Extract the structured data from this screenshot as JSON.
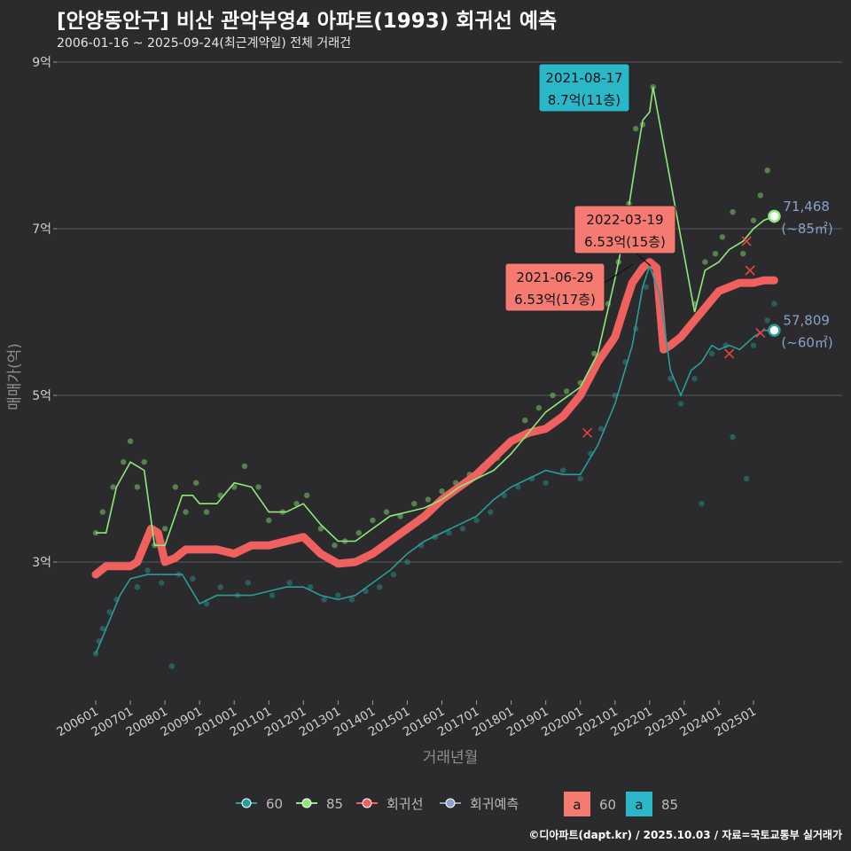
{
  "header": {
    "title": "[안양동안구] 비산 관악부영4 아파트(1993) 회귀선 예측",
    "subtitle": "2006-01-16 ~ 2025-09-24(최근계약일) 전체 거래건"
  },
  "footer": {
    "credit": "©디아파트(dapt.kr) / 2025.10.03 / 자료=국토교통부 실거래가"
  },
  "colors": {
    "background": "#2b2b2d",
    "grid": "#5a5a5c",
    "s60": "#2a9d9a",
    "s85": "#8ee87a",
    "regression": "#f0605e",
    "forecast": "#8fa0c8",
    "label60": "#2ab8c8",
    "label85": "#f47a72",
    "endLabel": "#8aa0c8"
  },
  "chart_data": {
    "type": "line",
    "title": "[안양동안구] 비산 관악부영4 아파트(1993) 회귀선 예측",
    "xlabel": "거래년월",
    "ylabel": "매매가(억)",
    "xlim": [
      2006.0,
      2025.85
    ],
    "ylim": [
      1.4,
      9.0
    ],
    "y_ticks": [
      3,
      5,
      7,
      9
    ],
    "y_tick_labels": [
      "3억",
      "5억",
      "7억",
      "9억"
    ],
    "x_ticks": [
      2006,
      2007,
      2008,
      2009,
      2010,
      2011,
      2012,
      2013,
      2014,
      2015,
      2016,
      2017,
      2018,
      2019,
      2020,
      2021,
      2022,
      2023,
      2024,
      2025
    ],
    "x_tick_labels": [
      "200601",
      "200701",
      "200801",
      "200901",
      "201001",
      "201101",
      "201201",
      "201301",
      "201401",
      "201501",
      "201601",
      "201701",
      "201801",
      "201901",
      "202001",
      "202101",
      "202201",
      "202301",
      "202401",
      "202501"
    ],
    "series": [
      {
        "name": "60",
        "x": [
          2006.0,
          2006.3,
          2006.7,
          2007.0,
          2007.5,
          2008.0,
          2008.5,
          2009.0,
          2009.5,
          2010.0,
          2010.5,
          2011.0,
          2011.5,
          2012.0,
          2012.5,
          2013.0,
          2013.5,
          2014.0,
          2014.5,
          2015.0,
          2015.5,
          2016.0,
          2016.5,
          2017.0,
          2017.5,
          2018.0,
          2018.5,
          2019.0,
          2019.5,
          2020.0,
          2020.5,
          2021.0,
          2021.5,
          2021.8,
          2022.0,
          2022.3,
          2022.6,
          2022.9,
          2023.2,
          2023.5,
          2023.8,
          2024.0,
          2024.3,
          2024.6,
          2025.0,
          2025.3,
          2025.6
        ],
        "y": [
          1.9,
          2.2,
          2.6,
          2.8,
          2.85,
          2.85,
          2.85,
          2.5,
          2.6,
          2.6,
          2.6,
          2.65,
          2.7,
          2.7,
          2.6,
          2.55,
          2.6,
          2.75,
          2.9,
          3.1,
          3.25,
          3.35,
          3.45,
          3.55,
          3.75,
          3.9,
          4.0,
          4.1,
          4.05,
          4.05,
          4.4,
          4.9,
          5.6,
          6.3,
          6.55,
          6.2,
          5.3,
          5.0,
          5.3,
          5.4,
          5.6,
          5.55,
          5.6,
          5.55,
          5.7,
          5.78,
          5.78
        ]
      },
      {
        "name": "85",
        "x": [
          2006.0,
          2006.3,
          2006.6,
          2007.0,
          2007.4,
          2007.7,
          2008.0,
          2008.5,
          2008.8,
          2009.0,
          2009.5,
          2010.0,
          2010.5,
          2011.0,
          2011.5,
          2012.0,
          2012.5,
          2013.0,
          2013.5,
          2014.0,
          2014.5,
          2015.0,
          2015.5,
          2016.0,
          2016.5,
          2017.0,
          2017.5,
          2018.0,
          2018.5,
          2019.0,
          2019.5,
          2020.0,
          2020.5,
          2021.0,
          2021.3,
          2021.6,
          2021.8,
          2022.0,
          2022.1,
          2023.3,
          2023.6,
          2024.0,
          2024.3,
          2024.7,
          2025.0,
          2025.3,
          2025.6
        ],
        "y": [
          3.35,
          3.35,
          3.9,
          4.2,
          4.1,
          3.2,
          3.2,
          3.8,
          3.8,
          3.7,
          3.7,
          3.95,
          3.9,
          3.6,
          3.6,
          3.7,
          3.45,
          3.25,
          3.25,
          3.4,
          3.55,
          3.6,
          3.65,
          3.75,
          3.9,
          4.0,
          4.1,
          4.3,
          4.55,
          4.8,
          4.95,
          5.1,
          5.5,
          6.4,
          7.0,
          7.8,
          8.3,
          8.4,
          8.7,
          6.0,
          6.5,
          6.6,
          6.75,
          6.85,
          7.0,
          7.1,
          7.15
        ]
      },
      {
        "name": "회귀선",
        "x": [
          2006.0,
          2006.3,
          2006.6,
          2007.0,
          2007.2,
          2007.6,
          2007.8,
          2008.0,
          2008.3,
          2008.6,
          2009.0,
          2009.5,
          2010.0,
          2010.5,
          2011.0,
          2011.5,
          2012.0,
          2012.5,
          2013.0,
          2013.5,
          2014.0,
          2014.5,
          2015.0,
          2015.5,
          2016.0,
          2016.5,
          2017.0,
          2017.5,
          2018.0,
          2018.5,
          2019.0,
          2019.5,
          2020.0,
          2020.5,
          2021.0,
          2021.3,
          2021.5,
          2021.8,
          2022.0,
          2022.2,
          2022.4,
          2022.6,
          2022.9,
          2023.2,
          2023.5,
          2023.8,
          2024.0,
          2024.3,
          2024.6,
          2025.0,
          2025.3,
          2025.6
        ],
        "y": [
          2.85,
          2.95,
          2.95,
          2.95,
          3.0,
          3.4,
          3.35,
          3.0,
          3.05,
          3.15,
          3.15,
          3.15,
          3.1,
          3.2,
          3.2,
          3.25,
          3.3,
          3.1,
          2.98,
          3.0,
          3.1,
          3.25,
          3.4,
          3.55,
          3.75,
          3.9,
          4.05,
          4.25,
          4.45,
          4.55,
          4.6,
          4.75,
          5.0,
          5.4,
          5.7,
          6.1,
          6.35,
          6.53,
          6.6,
          6.53,
          5.55,
          5.6,
          5.7,
          5.85,
          6.0,
          6.15,
          6.25,
          6.3,
          6.35,
          6.35,
          6.38,
          6.38
        ]
      }
    ],
    "points_60": [
      [
        2006.0,
        1.9
      ],
      [
        2006.1,
        2.05
      ],
      [
        2006.2,
        2.2
      ],
      [
        2006.4,
        2.4
      ],
      [
        2006.6,
        2.55
      ],
      [
        2007.2,
        2.7
      ],
      [
        2007.5,
        2.9
      ],
      [
        2007.9,
        2.75
      ],
      [
        2008.2,
        1.75
      ],
      [
        2008.4,
        2.85
      ],
      [
        2008.8,
        2.8
      ],
      [
        2009.2,
        2.5
      ],
      [
        2009.6,
        2.7
      ],
      [
        2010.1,
        2.6
      ],
      [
        2010.4,
        2.75
      ],
      [
        2011.1,
        2.6
      ],
      [
        2011.6,
        2.75
      ],
      [
        2012.2,
        2.7
      ],
      [
        2012.6,
        2.55
      ],
      [
        2013.0,
        2.6
      ],
      [
        2013.4,
        2.55
      ],
      [
        2013.8,
        2.65
      ],
      [
        2014.2,
        2.7
      ],
      [
        2014.6,
        2.85
      ],
      [
        2015.0,
        3.0
      ],
      [
        2015.4,
        3.2
      ],
      [
        2015.8,
        3.3
      ],
      [
        2016.2,
        3.35
      ],
      [
        2016.6,
        3.4
      ],
      [
        2017.0,
        3.5
      ],
      [
        2017.4,
        3.6
      ],
      [
        2017.8,
        3.8
      ],
      [
        2018.2,
        3.9
      ],
      [
        2018.6,
        4.0
      ],
      [
        2019.0,
        3.95
      ],
      [
        2019.5,
        4.1
      ],
      [
        2020.0,
        4.0
      ],
      [
        2020.3,
        4.3
      ],
      [
        2020.6,
        4.6
      ],
      [
        2021.0,
        5.0
      ],
      [
        2021.3,
        5.4
      ],
      [
        2021.6,
        5.8
      ],
      [
        2021.9,
        6.3
      ],
      [
        2022.1,
        6.55
      ],
      [
        2022.3,
        5.9
      ],
      [
        2022.6,
        5.2
      ],
      [
        2022.9,
        4.9
      ],
      [
        2023.3,
        5.2
      ],
      [
        2023.5,
        3.7
      ],
      [
        2023.8,
        5.5
      ],
      [
        2024.2,
        5.6
      ],
      [
        2024.4,
        4.5
      ],
      [
        2024.8,
        4.0
      ],
      [
        2025.0,
        5.6
      ],
      [
        2025.4,
        5.9
      ],
      [
        2025.6,
        6.1
      ]
    ],
    "points_85": [
      [
        2006.0,
        3.35
      ],
      [
        2006.2,
        3.6
      ],
      [
        2006.5,
        3.9
      ],
      [
        2006.8,
        4.2
      ],
      [
        2007.0,
        4.45
      ],
      [
        2007.2,
        3.9
      ],
      [
        2007.4,
        4.2
      ],
      [
        2007.7,
        3.2
      ],
      [
        2008.0,
        3.4
      ],
      [
        2008.3,
        3.9
      ],
      [
        2008.6,
        3.6
      ],
      [
        2008.9,
        3.95
      ],
      [
        2009.2,
        3.6
      ],
      [
        2009.6,
        3.8
      ],
      [
        2010.0,
        3.9
      ],
      [
        2010.3,
        4.15
      ],
      [
        2010.7,
        3.9
      ],
      [
        2011.0,
        3.5
      ],
      [
        2011.4,
        3.6
      ],
      [
        2011.8,
        3.7
      ],
      [
        2012.1,
        3.8
      ],
      [
        2012.5,
        3.4
      ],
      [
        2012.9,
        3.2
      ],
      [
        2013.2,
        3.25
      ],
      [
        2013.6,
        3.35
      ],
      [
        2014.0,
        3.5
      ],
      [
        2014.4,
        3.6
      ],
      [
        2014.8,
        3.55
      ],
      [
        2015.2,
        3.7
      ],
      [
        2015.6,
        3.75
      ],
      [
        2016.0,
        3.85
      ],
      [
        2016.4,
        3.95
      ],
      [
        2016.8,
        4.05
      ],
      [
        2017.2,
        4.15
      ],
      [
        2017.6,
        4.25
      ],
      [
        2018.0,
        4.45
      ],
      [
        2018.4,
        4.7
      ],
      [
        2018.8,
        4.85
      ],
      [
        2019.2,
        5.0
      ],
      [
        2019.6,
        5.05
      ],
      [
        2020.0,
        5.15
      ],
      [
        2020.4,
        5.5
      ],
      [
        2020.8,
        6.1
      ],
      [
        2021.1,
        6.6
      ],
      [
        2021.4,
        7.3
      ],
      [
        2021.6,
        8.2
      ],
      [
        2021.8,
        8.25
      ],
      [
        2022.1,
        8.7
      ],
      [
        2023.3,
        6.1
      ],
      [
        2023.6,
        6.6
      ],
      [
        2023.9,
        6.7
      ],
      [
        2024.1,
        6.9
      ],
      [
        2024.4,
        7.2
      ],
      [
        2024.7,
        6.7
      ],
      [
        2025.0,
        7.1
      ],
      [
        2025.2,
        7.4
      ],
      [
        2025.4,
        7.7
      ],
      [
        2025.6,
        7.1
      ]
    ],
    "regression_markers": [
      [
        2020.2,
        4.55
      ],
      [
        2024.3,
        5.5
      ],
      [
        2024.8,
        6.85
      ],
      [
        2025.2,
        5.75
      ],
      [
        2024.9,
        6.5
      ]
    ],
    "end_points": [
      {
        "name": "85",
        "x": 2025.6,
        "y": 7.15,
        "value_label": "71,468",
        "size_label": "(~85㎡)"
      },
      {
        "name": "60",
        "x": 2025.6,
        "y": 5.78,
        "value_label": "57,809",
        "size_label": "(~60㎡)"
      }
    ],
    "annotations": [
      {
        "series": "85",
        "date": "2021-08-17",
        "price": "8.7억(11층)",
        "x": 2021.63,
        "y": 8.7
      },
      {
        "series": "60",
        "date": "2022-03-19",
        "price": "6.53억(15층)",
        "x": 2022.21,
        "y": 6.53
      },
      {
        "series": "60",
        "date": "2021-06-29",
        "price": "6.53억(17층)",
        "x": 2021.49,
        "y": 6.53
      }
    ],
    "legend": {
      "placement": "bottom",
      "items": [
        "60",
        "85",
        "회귀선",
        "회귀예측"
      ],
      "label_items": [
        {
          "glyph": "a",
          "text": "60"
        },
        {
          "glyph": "a",
          "text": "85"
        }
      ]
    }
  }
}
